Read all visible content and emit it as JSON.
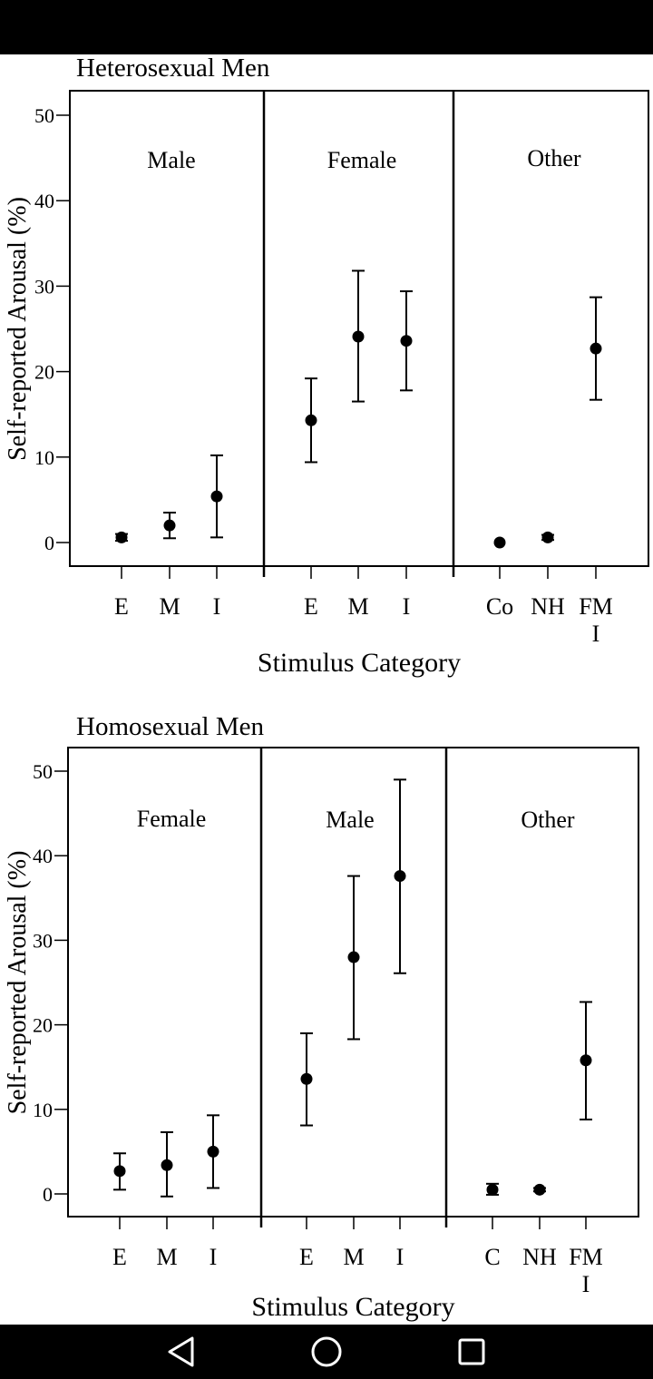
{
  "chart_data": [
    {
      "type": "scatter",
      "subtype": "error-bar",
      "title": "Heterosexual Men",
      "xlabel": "Stimulus Category",
      "ylabel": "Self-reported Arousal (%)",
      "ylim": [
        0,
        50
      ],
      "yticks": [
        "0",
        "10",
        "20",
        "30",
        "40",
        "50"
      ],
      "grid": false,
      "panels": [
        {
          "label": "Male",
          "points": [
            {
              "x": "E",
              "y": 0.6,
              "lo": 0.2,
              "hi": 1.0
            },
            {
              "x": "M",
              "y": 2.0,
              "lo": 0.5,
              "hi": 3.5
            },
            {
              "x": "I",
              "y": 5.4,
              "lo": 0.6,
              "hi": 10.2
            }
          ]
        },
        {
          "label": "Female",
          "points": [
            {
              "x": "E",
              "y": 14.3,
              "lo": 9.4,
              "hi": 19.2
            },
            {
              "x": "M",
              "y": 24.1,
              "lo": 16.5,
              "hi": 31.8
            },
            {
              "x": "I",
              "y": 23.6,
              "lo": 17.8,
              "hi": 29.4
            }
          ]
        },
        {
          "label": "Other",
          "points": [
            {
              "x": "Co",
              "y": 0.0,
              "lo": 0.0,
              "hi": 0.0
            },
            {
              "x": "NH",
              "y": 0.6,
              "lo": 0.3,
              "hi": 0.9
            },
            {
              "x": "FM\nI",
              "y": 22.7,
              "lo": 16.7,
              "hi": 28.7
            }
          ]
        }
      ]
    },
    {
      "type": "scatter",
      "subtype": "error-bar",
      "title": "Homosexual Men",
      "xlabel": "Stimulus Category",
      "ylabel": "Self-reported Arousal (%)",
      "ylim": [
        0,
        50
      ],
      "yticks": [
        "0",
        "10",
        "20",
        "30",
        "40",
        "50"
      ],
      "grid": false,
      "panels": [
        {
          "label": "Female",
          "points": [
            {
              "x": "E",
              "y": 2.7,
              "lo": 0.5,
              "hi": 4.8
            },
            {
              "x": "M",
              "y": 3.4,
              "lo": -0.3,
              "hi": 7.3
            },
            {
              "x": "I",
              "y": 5.0,
              "lo": 0.7,
              "hi": 9.3
            }
          ]
        },
        {
          "label": "Male",
          "points": [
            {
              "x": "E",
              "y": 13.6,
              "lo": 8.1,
              "hi": 19.0
            },
            {
              "x": "M",
              "y": 28.0,
              "lo": 18.3,
              "hi": 37.6
            },
            {
              "x": "I",
              "y": 37.6,
              "lo": 26.1,
              "hi": 49.0
            }
          ]
        },
        {
          "label": "Other",
          "points": [
            {
              "x": "C",
              "y": 0.5,
              "lo": -0.1,
              "hi": 1.2
            },
            {
              "x": "NH",
              "y": 0.5,
              "lo": 0.3,
              "hi": 0.7
            },
            {
              "x": "FM\nI",
              "y": 15.8,
              "lo": 8.8,
              "hi": 22.7
            }
          ]
        }
      ]
    }
  ],
  "nav": {
    "back_icon": "back-triangle-icon",
    "home_icon": "home-circle-icon",
    "recents_icon": "recents-square-icon"
  }
}
